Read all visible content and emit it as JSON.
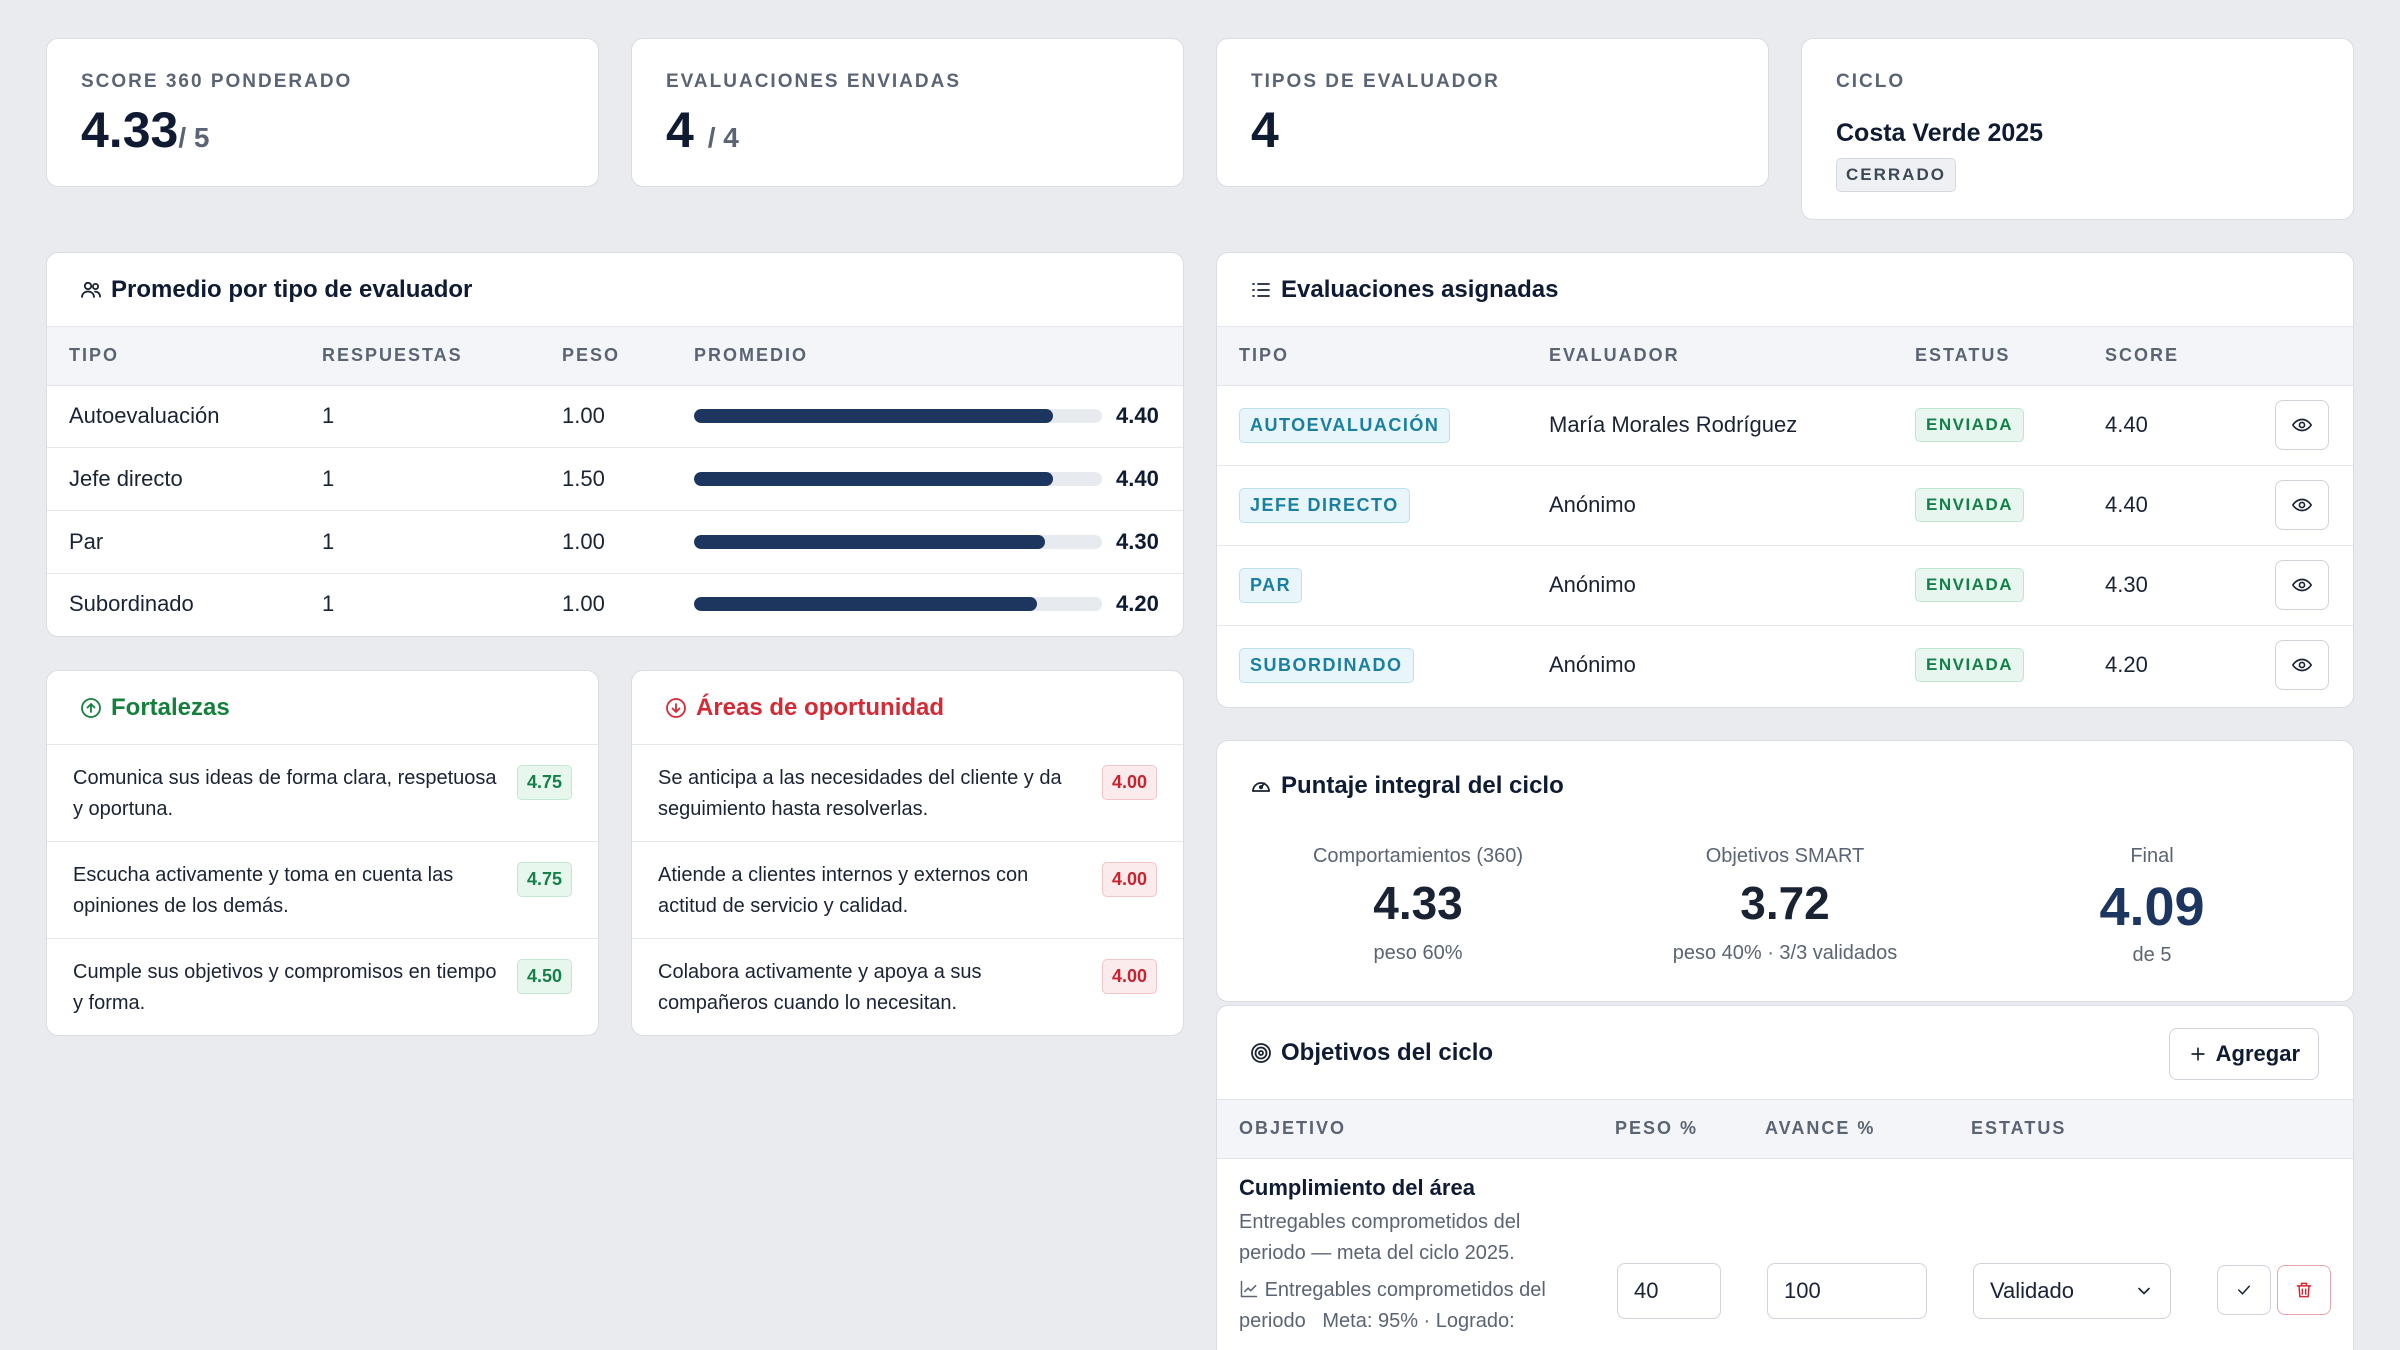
{
  "kpis": {
    "score": {
      "label": "SCORE 360 PONDERADO",
      "value": "4.33",
      "suffix": "/ 5"
    },
    "sent": {
      "label": "EVALUACIONES ENVIADAS",
      "value": "4",
      "suffix": "/ 4"
    },
    "types": {
      "label": "TIPOS DE EVALUADOR",
      "value": "4"
    },
    "cycle": {
      "label": "CICLO",
      "name": "Costa Verde 2025",
      "status": "CERRADO"
    }
  },
  "by_type": {
    "title": "Promedio por tipo de evaluador",
    "icon": "users-icon",
    "headers": [
      "TIPO",
      "RESPUESTAS",
      "PESO",
      "PROMEDIO"
    ],
    "rows": [
      {
        "tipo": "Autoevaluación",
        "respuestas": "1",
        "peso": "1.00",
        "promedio": "4.40",
        "fraction": 0.88
      },
      {
        "tipo": "Jefe directo",
        "respuestas": "1",
        "peso": "1.50",
        "promedio": "4.40",
        "fraction": 0.88
      },
      {
        "tipo": "Par",
        "respuestas": "1",
        "peso": "1.00",
        "promedio": "4.30",
        "fraction": 0.86
      },
      {
        "tipo": "Subordinado",
        "respuestas": "1",
        "peso": "1.00",
        "promedio": "4.20",
        "fraction": 0.84
      }
    ]
  },
  "assigned": {
    "title": "Evaluaciones asignadas",
    "icon": "list-icon",
    "headers": [
      "TIPO",
      "EVALUADOR",
      "ESTATUS",
      "SCORE"
    ],
    "rows": [
      {
        "tipo": "AUTOEVALUACIÓN",
        "evaluador": "María Morales Rodríguez",
        "estatus": "ENVIADA",
        "score": "4.40"
      },
      {
        "tipo": "JEFE DIRECTO",
        "evaluador": "Anónimo",
        "estatus": "ENVIADA",
        "score": "4.40"
      },
      {
        "tipo": "PAR",
        "evaluador": "Anónimo",
        "estatus": "ENVIADA",
        "score": "4.30"
      },
      {
        "tipo": "SUBORDINADO",
        "evaluador": "Anónimo",
        "estatus": "ENVIADA",
        "score": "4.20"
      }
    ]
  },
  "strengths": {
    "title": "Fortalezas",
    "icon": "arrow-up-circle-icon",
    "color": "#15803d",
    "items": [
      {
        "text": "Comunica sus ideas de forma clara, respetuosa y oportuna.",
        "score": "4.75"
      },
      {
        "text": "Escucha activamente y toma en cuenta las opiniones de los demás.",
        "score": "4.75"
      },
      {
        "text": "Cumple sus objetivos y compromisos en tiempo y forma.",
        "score": "4.50"
      }
    ]
  },
  "opportunities": {
    "title": "Áreas de oportunidad",
    "icon": "arrow-down-circle-icon",
    "color": "#d42a36",
    "items": [
      {
        "text": "Se anticipa a las necesidades del cliente y da seguimiento hasta resolverlas.",
        "score": "4.00"
      },
      {
        "text": "Atiende a clientes internos y externos con actitud de servicio y calidad.",
        "score": "4.00"
      },
      {
        "text": "Colabora activamente y apoya a sus compañeros cuando lo necesitan.",
        "score": "4.00"
      }
    ]
  },
  "integral": {
    "title": "Puntaje integral del ciclo",
    "icon": "gauge-icon",
    "behaviors": {
      "label": "Comportamientos (360)",
      "value": "4.33",
      "sub": "peso 60%"
    },
    "objectives": {
      "label": "Objetivos SMART",
      "value": "3.72",
      "sub": "peso 40% · 3/3 validados"
    },
    "final": {
      "label": "Final",
      "value": "4.09",
      "sub": "de 5"
    }
  },
  "objectives": {
    "title": "Objetivos del ciclo",
    "icon": "target-icon",
    "add_label": "Agregar",
    "headers": [
      "OBJETIVO",
      "PESO %",
      "AVANCE %",
      "ESTATUS"
    ],
    "rows": [
      {
        "name": "Cumplimiento del área",
        "desc": "Entregables comprometidos del periodo — meta del ciclo 2025.",
        "kpi": "Entregables comprometidos del periodo",
        "meta": "Meta: 95% · Logrado:",
        "peso": "40",
        "avance": "100",
        "estatus": "Validado"
      }
    ]
  }
}
